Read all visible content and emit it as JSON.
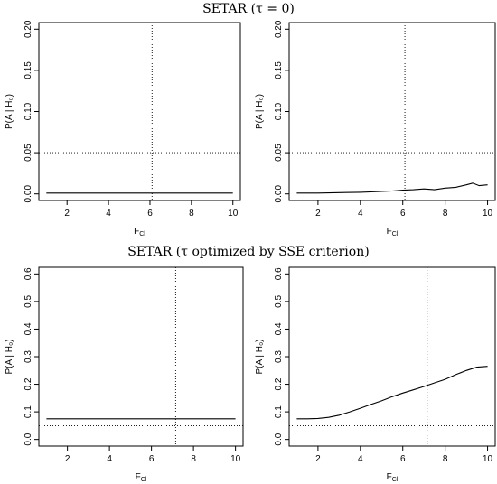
{
  "sections": [
    {
      "title": "SETAR (τ = 0)"
    },
    {
      "title": "SETAR (τ optimized by SSE criterion)"
    }
  ],
  "chart_data": [
    {
      "type": "line",
      "xlabel": "F",
      "xlabel_sub": "Cl",
      "ylabel": "P(A | H₀)",
      "xlim": [
        1,
        10
      ],
      "ylim": [
        0,
        0.2
      ],
      "xticks": [
        2,
        4,
        6,
        8,
        10
      ],
      "yticks": [
        0.0,
        0.05,
        0.1,
        0.15,
        0.2
      ],
      "ytick_labels": [
        "0.00",
        "0.05",
        "0.10",
        "0.15",
        "0.20"
      ],
      "vline": 6.1,
      "hline": 0.05,
      "series": [
        {
          "x": [
            1,
            2,
            3,
            4,
            5,
            6,
            7,
            8,
            9,
            10
          ],
          "y": [
            0.001,
            0.001,
            0.001,
            0.001,
            0.001,
            0.001,
            0.001,
            0.001,
            0.001,
            0.001
          ]
        }
      ]
    },
    {
      "type": "line",
      "xlabel": "F",
      "xlabel_sub": "Cl",
      "ylabel": "P(A | H₀)",
      "xlim": [
        1,
        10
      ],
      "ylim": [
        0,
        0.2
      ],
      "xticks": [
        2,
        4,
        6,
        8,
        10
      ],
      "yticks": [
        0.0,
        0.05,
        0.1,
        0.15,
        0.2
      ],
      "ytick_labels": [
        "0.00",
        "0.05",
        "0.10",
        "0.15",
        "0.20"
      ],
      "vline": 6.1,
      "hline": 0.05,
      "series": [
        {
          "x": [
            1,
            2,
            3,
            4,
            5,
            5.5,
            6,
            6.5,
            7,
            7.5,
            8,
            8.5,
            9,
            9.3,
            9.6,
            10
          ],
          "y": [
            0.001,
            0.001,
            0.0015,
            0.002,
            0.003,
            0.0035,
            0.0045,
            0.005,
            0.006,
            0.005,
            0.007,
            0.008,
            0.011,
            0.013,
            0.01,
            0.011
          ]
        }
      ]
    },
    {
      "type": "line",
      "xlabel": "F",
      "xlabel_sub": "Cl",
      "ylabel": "P(A | H₀)",
      "xlim": [
        1,
        10
      ],
      "ylim": [
        0,
        0.6
      ],
      "xticks": [
        2,
        4,
        6,
        8,
        10
      ],
      "yticks": [
        0.0,
        0.1,
        0.2,
        0.3,
        0.4,
        0.5,
        0.6
      ],
      "ytick_labels": [
        "0.0",
        "0.1",
        "0.2",
        "0.3",
        "0.4",
        "0.5",
        "0.6"
      ],
      "vline": 7.15,
      "hline": 0.05,
      "series": [
        {
          "x": [
            1,
            2,
            3,
            4,
            5,
            6,
            7,
            8,
            9,
            10
          ],
          "y": [
            0.075,
            0.075,
            0.075,
            0.075,
            0.075,
            0.075,
            0.075,
            0.075,
            0.075,
            0.075
          ]
        }
      ]
    },
    {
      "type": "line",
      "xlabel": "F",
      "xlabel_sub": "Cl",
      "ylabel": "P(A | H₀)",
      "xlim": [
        1,
        10
      ],
      "ylim": [
        0,
        0.6
      ],
      "xticks": [
        2,
        4,
        6,
        8,
        10
      ],
      "yticks": [
        0.0,
        0.1,
        0.2,
        0.3,
        0.4,
        0.5,
        0.6
      ],
      "ytick_labels": [
        "0.0",
        "0.1",
        "0.2",
        "0.3",
        "0.4",
        "0.5",
        "0.6"
      ],
      "vline": 7.15,
      "hline": 0.05,
      "series": [
        {
          "x": [
            1,
            1.5,
            2,
            2.5,
            3,
            3.5,
            4,
            4.5,
            5,
            5.5,
            6,
            6.5,
            7,
            7.5,
            8,
            8.5,
            9,
            9.5,
            10
          ],
          "y": [
            0.075,
            0.075,
            0.076,
            0.08,
            0.088,
            0.1,
            0.113,
            0.127,
            0.14,
            0.155,
            0.168,
            0.18,
            0.192,
            0.205,
            0.218,
            0.235,
            0.25,
            0.262,
            0.265
          ]
        }
      ]
    }
  ]
}
